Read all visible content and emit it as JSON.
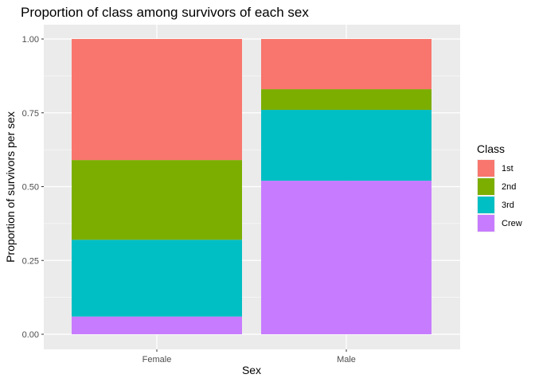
{
  "chart_data": {
    "type": "bar",
    "stacked": true,
    "title": "Proportion of class among survivors of each sex",
    "xlabel": "Sex",
    "ylabel": "Proportion of survivors per sex",
    "categories": [
      "Female",
      "Male"
    ],
    "ylim": [
      0,
      1
    ],
    "yticks": [
      "0.00",
      "0.25",
      "0.50",
      "0.75",
      "1.00"
    ],
    "grid": true,
    "legend": {
      "title": "Class",
      "position": "right"
    },
    "series": [
      {
        "name": "1st",
        "color": "#F8766D",
        "values": [
          0.41,
          0.17
        ]
      },
      {
        "name": "2nd",
        "color": "#7CAE00",
        "values": [
          0.27,
          0.07
        ]
      },
      {
        "name": "3rd",
        "color": "#00BFC4",
        "values": [
          0.26,
          0.24
        ]
      },
      {
        "name": "Crew",
        "color": "#C77CFF",
        "values": [
          0.06,
          0.52
        ]
      }
    ],
    "stack_order_bottom_to_top": [
      "Crew",
      "3rd",
      "2nd",
      "1st"
    ],
    "panel_background": "#EBEBEB",
    "grid_color": "#FFFFFF"
  }
}
